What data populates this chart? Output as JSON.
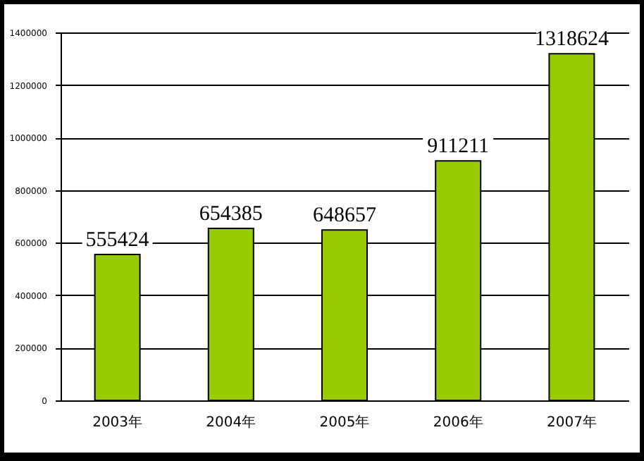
{
  "chart_data": {
    "type": "bar",
    "categories": [
      "2003年",
      "2004年",
      "2005年",
      "2006年",
      "2007年"
    ],
    "values": [
      555424,
      654385,
      648657,
      911211,
      1318624
    ],
    "color": "#99cc00",
    "ylim": [
      0,
      1400000
    ],
    "yticks": [
      0,
      200000,
      400000,
      600000,
      800000,
      1000000,
      1200000,
      1400000
    ],
    "grid": "y",
    "data_labels": true
  }
}
